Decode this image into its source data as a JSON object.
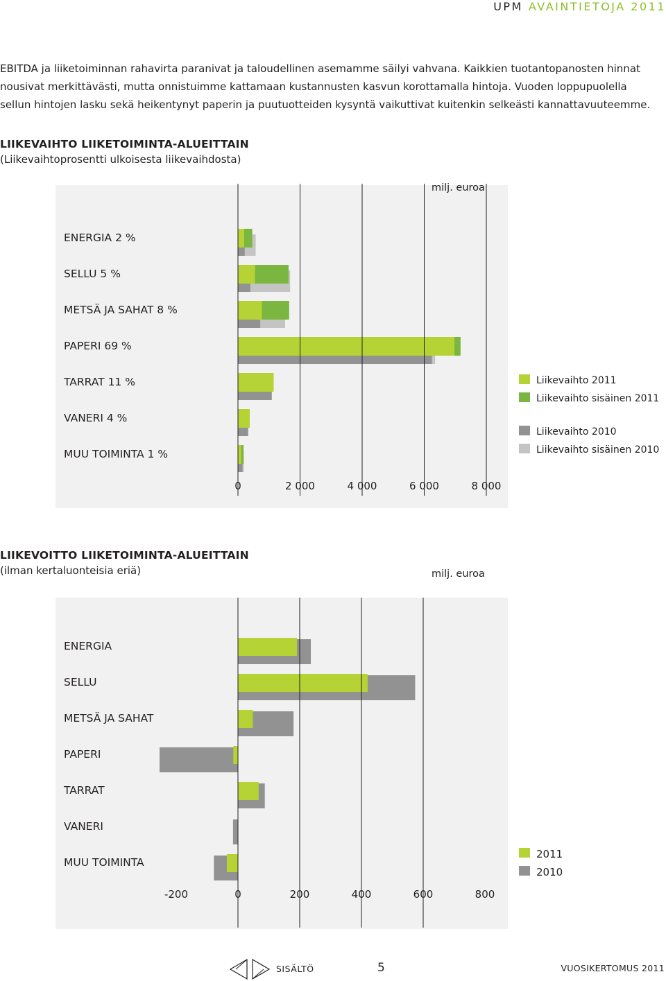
{
  "header": {
    "company": "UPM",
    "section": "AVAINTIETOJA 2011"
  },
  "intro": "EBITDA ja liiketoiminnan rahavirta paranivat ja taloudellinen asemamme säilyi vahvana. Kaikkien tuotantopanosten hinnat nousivat merkittävästi, mutta onnistuimme kattamaan kustannusten kasvun korottamalla hintoja. Vuoden loppupuolella sellun hintojen lasku sekä heikentynyt paperin ja puutuotteiden kysyntä vaikuttivat kuitenkin selkeästi kannattavuuteemme.",
  "colors": {
    "green_light": "#b5d334",
    "green_dark": "#7ab640",
    "gray_dark": "#929292",
    "gray_light": "#c4c4c4",
    "panel": "#f1f1f1",
    "gridline": "#231f20"
  },
  "chart_data": [
    {
      "type": "bar",
      "orientation": "horizontal",
      "title": "LIIKEVAIHTO LIIKETOIMINTA-ALUEITTAIN",
      "subtitle": "(Liikevaihtoprosentti ulkoisesta liikevaihdosta)",
      "unit": "milj. euroa",
      "categories": [
        "ENERGIA 2 %",
        "SELLU 5 %",
        "METSÄ JA SAHAT 8 %",
        "PAPERI 69 %",
        "TARRAT 11 %",
        "VANERI 4 %",
        "MUU TOIMINTA 1 %"
      ],
      "series": [
        {
          "name": "Liikevaihto 2011",
          "color": "#b5d334",
          "values": [
            200,
            550,
            770,
            6970,
            1150,
            380,
            100
          ]
        },
        {
          "name": "Liikevaihto sisäinen 2011",
          "color": "#7ab640",
          "values": [
            260,
            1080,
            880,
            200,
            0,
            0,
            80
          ]
        },
        {
          "name": "Liikevaihto 2010",
          "color": "#929292",
          "values": [
            220,
            400,
            720,
            6250,
            1090,
            330,
            150
          ]
        },
        {
          "name": "Liikevaihto sisäinen 2010",
          "color": "#c4c4c4",
          "values": [
            350,
            1280,
            800,
            100,
            0,
            0,
            40
          ]
        }
      ],
      "xticks": [
        "0",
        "2 000",
        "4 000",
        "6 000",
        "8 000"
      ],
      "xlim": [
        0,
        8000
      ],
      "legend_position": "right"
    },
    {
      "type": "bar",
      "orientation": "horizontal",
      "title": "LIIKEVOITTO LIIKETOIMINTA-ALUEITTAIN",
      "subtitle": "(ilman kertaluonteisia eriä)",
      "unit": "milj. euroa",
      "categories": [
        "ENERGIA",
        "SELLU",
        "METSÄ JA SAHAT",
        "PAPERI",
        "TARRAT",
        "VANERI",
        "MUU TOIMINTA"
      ],
      "series": [
        {
          "name": "2011",
          "color": "#b5d334",
          "values": [
            191,
            420,
            48,
            -15,
            67,
            0,
            -36
          ]
        },
        {
          "name": "2010",
          "color": "#929292",
          "values": [
            236,
            574,
            180,
            -254,
            87,
            -16,
            -78
          ]
        }
      ],
      "xticks": [
        "-200",
        "0",
        "200",
        "400",
        "600",
        "800"
      ],
      "xlim": [
        -254,
        800
      ],
      "legend_position": "bottom-right"
    }
  ],
  "footer": {
    "toc": "SISÄLTÖ",
    "page": "5",
    "doc": "VUOSIKERTOMUS 2011"
  }
}
